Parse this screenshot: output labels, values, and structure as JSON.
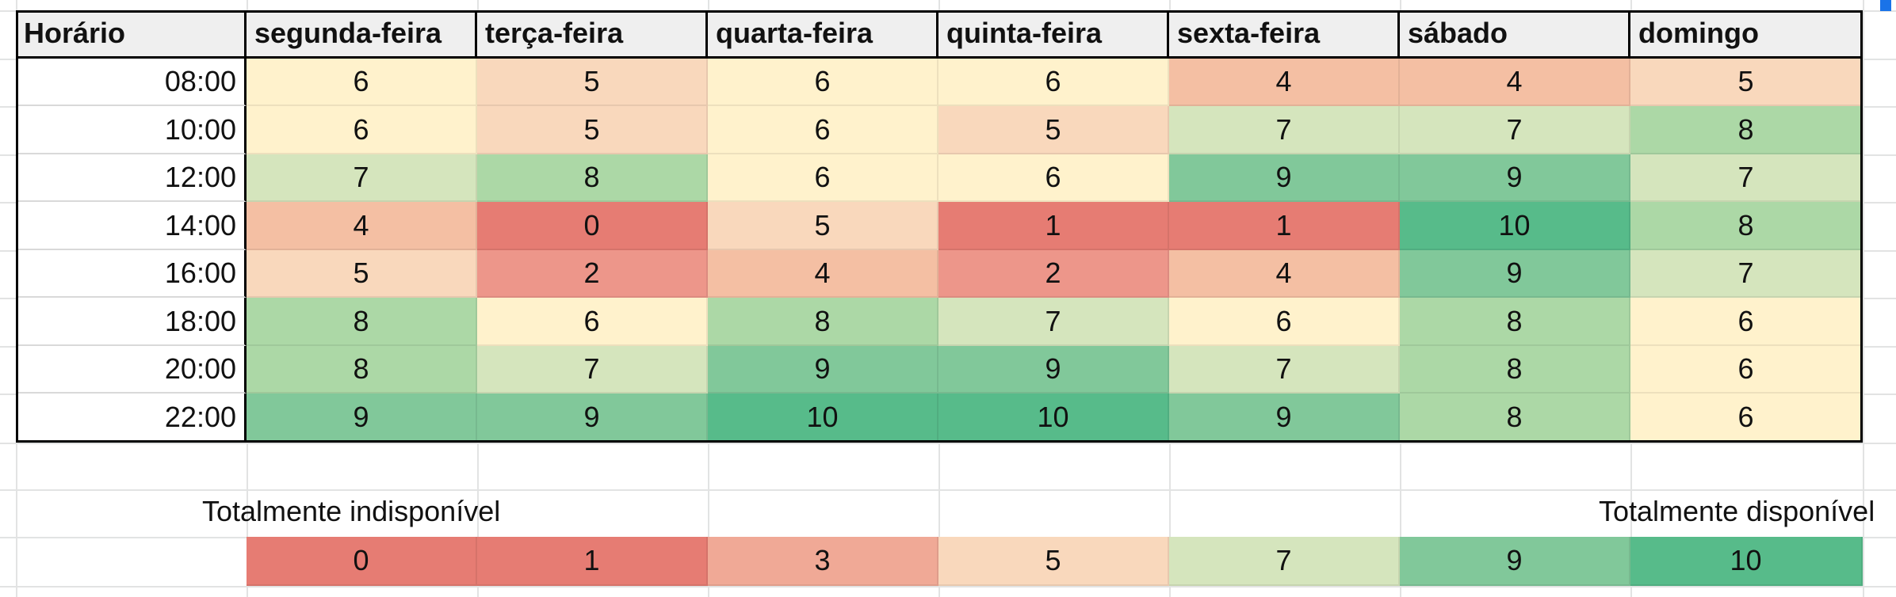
{
  "header": {
    "time_label": "Horário",
    "days": [
      "segunda-feira",
      "terça-feira",
      "quarta-feira",
      "quinta-feira",
      "sexta-feira",
      "sábado",
      "domingo"
    ]
  },
  "rows": [
    {
      "time": "08:00",
      "values": [
        6,
        5,
        6,
        6,
        4,
        4,
        5
      ]
    },
    {
      "time": "10:00",
      "values": [
        6,
        5,
        6,
        5,
        7,
        7,
        8
      ]
    },
    {
      "time": "12:00",
      "values": [
        7,
        8,
        6,
        6,
        9,
        9,
        7
      ]
    },
    {
      "time": "14:00",
      "values": [
        4,
        0,
        5,
        1,
        1,
        10,
        8
      ]
    },
    {
      "time": "16:00",
      "values": [
        5,
        2,
        4,
        2,
        4,
        9,
        7
      ]
    },
    {
      "time": "18:00",
      "values": [
        8,
        6,
        8,
        7,
        6,
        8,
        6
      ]
    },
    {
      "time": "20:00",
      "values": [
        8,
        7,
        9,
        9,
        7,
        8,
        6
      ]
    },
    {
      "time": "22:00",
      "values": [
        9,
        9,
        10,
        10,
        9,
        8,
        6
      ]
    }
  ],
  "legend": {
    "left_label": "Totalmente indisponível",
    "right_label": "Totalmente disponível",
    "scale": [
      0,
      1,
      3,
      5,
      7,
      9,
      10
    ]
  },
  "colors": {
    "0": "#e67c73",
    "1": "#e67c73",
    "2": "#ed968a",
    "3": "#f0a996",
    "4": "#f4bfa3",
    "5": "#f9d8bc",
    "6": "#fff2cc",
    "7": "#d5e5bd",
    "8": "#acd8a6",
    "9": "#81c89a",
    "10": "#57bb8a"
  }
}
